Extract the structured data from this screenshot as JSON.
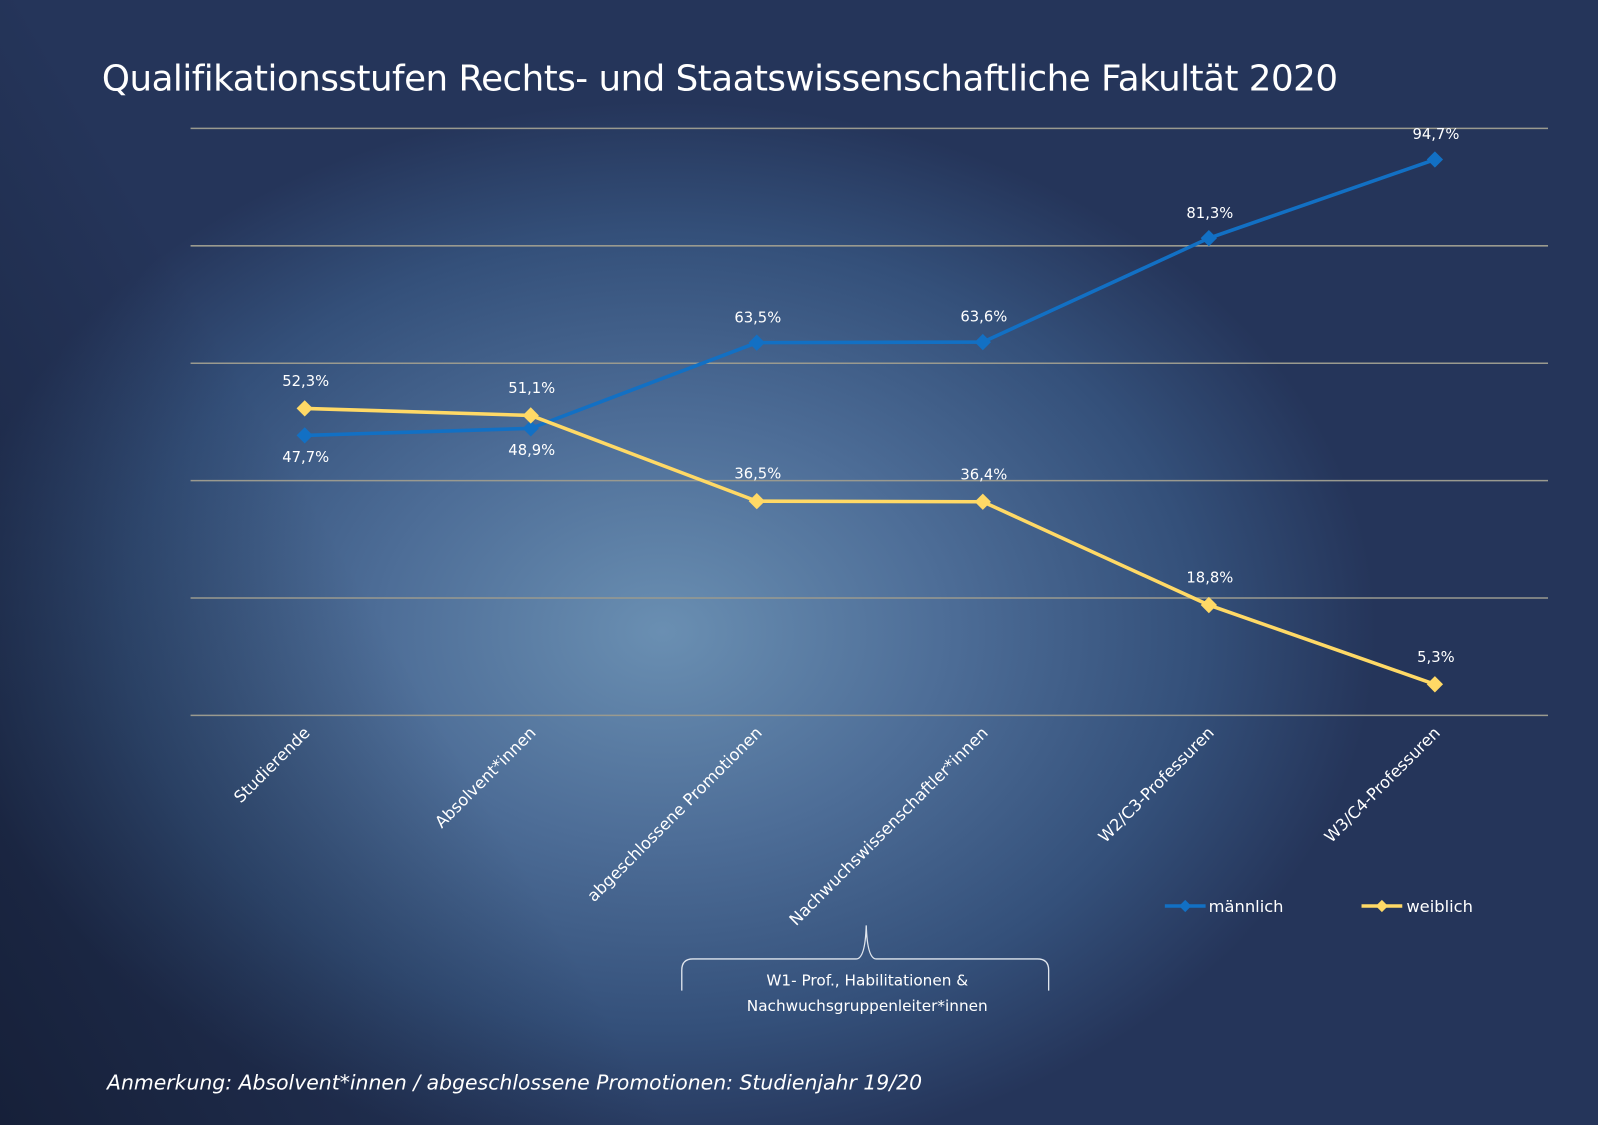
{
  "chart_data": {
    "type": "line",
    "title": "Qualifikationsstufen Rechts- und Staatswissenschaftliche Fakultät 2020",
    "categories": [
      "Studierende",
      "Absolvent*innen",
      "abgeschlossene Promotionen",
      "Nachwuchswissenschaftler*innen",
      "W2/C3-Professuren",
      "W3/C4-Professuren"
    ],
    "series": [
      {
        "name": "männlich",
        "color": "#1270c4",
        "values": [
          47.7,
          48.9,
          63.5,
          63.6,
          81.3,
          94.7
        ],
        "labels": [
          "47,7%",
          "48,9%",
          "63,5%",
          "63,6%",
          "81,3%",
          "94,7%"
        ]
      },
      {
        "name": "weiblich",
        "color": "#ffd966",
        "values": [
          52.3,
          51.1,
          36.5,
          36.4,
          18.8,
          5.3
        ],
        "labels": [
          "52,3%",
          "51,1%",
          "36,5%",
          "36,4%",
          "18,8%",
          "5,3%"
        ]
      }
    ],
    "ylim": [
      0,
      100
    ],
    "grid": true,
    "legend": "bottom-right",
    "annotation": [
      "W1- Prof., Habilitationen &",
      "Nachwuchsgruppenleiter*innen"
    ]
  },
  "note": "Anmerkung: Absolvent*innen / abgeschlossene Promotionen: Studienjahr 19/20"
}
